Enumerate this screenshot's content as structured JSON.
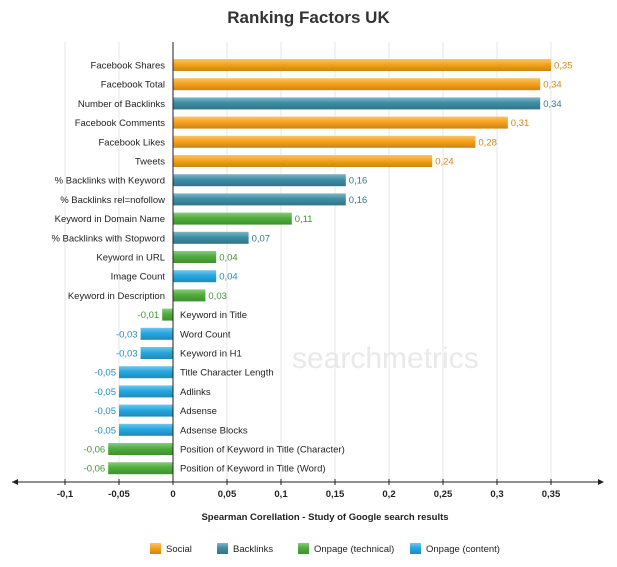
{
  "chart_data": {
    "type": "bar",
    "orientation": "horizontal",
    "title": "Ranking Factors UK",
    "xlabel": "Spearman Corellation - Study of Google search results",
    "xlim": [
      -0.15,
      0.4
    ],
    "xticks": [
      -0.1,
      -0.05,
      0,
      0.05,
      0.1,
      0.15,
      0.2,
      0.25,
      0.3,
      0.35
    ],
    "xtick_labels": [
      "-0,1",
      "-0,05",
      "0",
      "0,05",
      "0,1",
      "0,15",
      "0,2",
      "0,25",
      "0,3",
      "0,35"
    ],
    "grid": true,
    "legend_position": "bottom",
    "watermark": "searchmetrics",
    "series": [
      {
        "name": "Social",
        "color": "#f7a21b"
      },
      {
        "name": "Backlinks",
        "color": "#3d8ea6"
      },
      {
        "name": "Onpage (technical)",
        "color": "#4eae3a"
      },
      {
        "name": "Onpage (content)",
        "color": "#26a8e2"
      }
    ],
    "bars": [
      {
        "label": "Facebook Shares",
        "value": 0.35,
        "value_label": "0,35",
        "series": "Social"
      },
      {
        "label": "Facebook Total",
        "value": 0.34,
        "value_label": "0,34",
        "series": "Social"
      },
      {
        "label": "Number of Backlinks",
        "value": 0.34,
        "value_label": "0,34",
        "series": "Backlinks"
      },
      {
        "label": "Facebook Comments",
        "value": 0.31,
        "value_label": "0,31",
        "series": "Social"
      },
      {
        "label": "Facebook Likes",
        "value": 0.28,
        "value_label": "0,28",
        "series": "Social"
      },
      {
        "label": "Tweets",
        "value": 0.24,
        "value_label": "0,24",
        "series": "Social"
      },
      {
        "label": "% Backlinks with Keyword",
        "value": 0.16,
        "value_label": "0,16",
        "series": "Backlinks"
      },
      {
        "label": "% Backlinks rel=nofollow",
        "value": 0.16,
        "value_label": "0,16",
        "series": "Backlinks"
      },
      {
        "label": "Keyword in Domain Name",
        "value": 0.11,
        "value_label": "0,11",
        "series": "Onpage (technical)"
      },
      {
        "label": "% Backlinks with Stopword",
        "value": 0.07,
        "value_label": "0,07",
        "series": "Backlinks"
      },
      {
        "label": "Keyword in URL",
        "value": 0.04,
        "value_label": "0,04",
        "series": "Onpage (technical)"
      },
      {
        "label": "Image Count",
        "value": 0.04,
        "value_label": "0,04",
        "series": "Onpage (content)"
      },
      {
        "label": "Keyword in Description",
        "value": 0.03,
        "value_label": "0,03",
        "series": "Onpage (technical)"
      },
      {
        "label": "Keyword in Title",
        "value": -0.01,
        "value_label": "-0,01",
        "series": "Onpage (technical)"
      },
      {
        "label": "Word Count",
        "value": -0.03,
        "value_label": "-0,03",
        "series": "Onpage (content)"
      },
      {
        "label": "Keyword in H1",
        "value": -0.03,
        "value_label": "-0,03",
        "series": "Onpage (content)"
      },
      {
        "label": "Title Character Length",
        "value": -0.05,
        "value_label": "-0,05",
        "series": "Onpage (content)"
      },
      {
        "label": "Adlinks",
        "value": -0.05,
        "value_label": "-0,05",
        "series": "Onpage (content)"
      },
      {
        "label": "Adsense",
        "value": -0.05,
        "value_label": "-0,05",
        "series": "Onpage (content)"
      },
      {
        "label": "Adsense Blocks",
        "value": -0.05,
        "value_label": "-0,05",
        "series": "Onpage (content)"
      },
      {
        "label": "Position of Keyword in Title (Character)",
        "value": -0.06,
        "value_label": "-0,06",
        "series": "Onpage (technical)"
      },
      {
        "label": "Position of Keyword in Title (Word)",
        "value": -0.06,
        "value_label": "-0,06",
        "series": "Onpage (technical)"
      }
    ]
  }
}
